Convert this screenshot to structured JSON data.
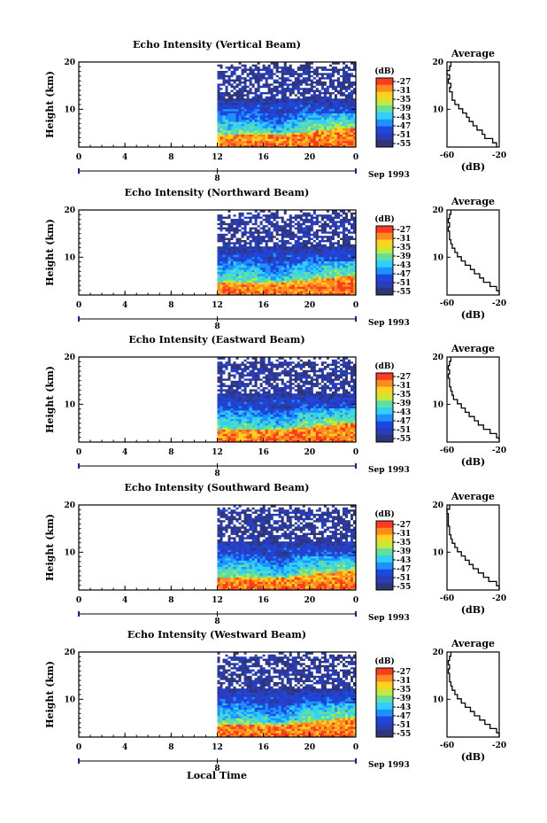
{
  "figure": {
    "xlabel": "Local Time",
    "date_label": "Sep 1993",
    "day_marker": "8"
  },
  "chart_data": [
    {
      "type": "heatmap",
      "title": "Echo Intensity (Vertical Beam)",
      "ylabel": "Height (km)",
      "xlabel": "",
      "xlim": [
        0,
        24
      ],
      "ylim": [
        2,
        20
      ],
      "x_ticks": [
        "0",
        "4",
        "8",
        "12",
        "16",
        "20",
        "0"
      ],
      "y_ticks": [
        "10",
        "20"
      ],
      "data_start_hour": 12,
      "colorbar": {
        "label": "(dB)",
        "ticks": [
          "-27",
          "-31",
          "-35",
          "-39",
          "-43",
          "-47",
          "-51",
          "-55"
        ]
      },
      "profile": {
        "title": "Average",
        "xlabel": "(dB)",
        "xlim": [
          -60,
          -20
        ],
        "x_ticks": [
          "-60",
          "-20"
        ],
        "y_ticks": [
          "10",
          "20"
        ],
        "values": [
          -22,
          -25,
          -31,
          -33,
          -37,
          -40,
          -43,
          -45,
          -48,
          -51,
          -54,
          -56,
          -56,
          -58,
          -57,
          -59,
          -58,
          -60,
          -58,
          -57
        ]
      }
    },
    {
      "type": "heatmap",
      "title": "Echo Intensity (Northward Beam)",
      "ylabel": "Height (km)",
      "xlabel": "",
      "xlim": [
        0,
        24
      ],
      "ylim": [
        2,
        20
      ],
      "x_ticks": [
        "0",
        "4",
        "8",
        "12",
        "16",
        "20",
        "0"
      ],
      "y_ticks": [
        "10",
        "20"
      ],
      "data_start_hour": 12,
      "colorbar": {
        "label": "(dB)",
        "ticks": [
          "-27",
          "-31",
          "-35",
          "-39",
          "-43",
          "-47",
          "-51",
          "-55"
        ]
      },
      "profile": {
        "title": "Average",
        "xlabel": "(dB)",
        "xlim": [
          -60,
          -20
        ],
        "x_ticks": [
          "-60",
          "-20"
        ],
        "y_ticks": [
          "10",
          "20"
        ],
        "values": [
          -20,
          -22,
          -27,
          -32,
          -35,
          -39,
          -42,
          -46,
          -49,
          -52,
          -54,
          -56,
          -57,
          -58,
          -58,
          -59,
          -58,
          -59,
          -58,
          -57
        ]
      }
    },
    {
      "type": "heatmap",
      "title": "Echo Intensity (Eastward Beam)",
      "ylabel": "Height (km)",
      "xlabel": "",
      "xlim": [
        0,
        24
      ],
      "ylim": [
        2,
        20
      ],
      "x_ticks": [
        "0",
        "4",
        "8",
        "12",
        "16",
        "20",
        "0"
      ],
      "y_ticks": [
        "10",
        "20"
      ],
      "data_start_hour": 12,
      "colorbar": {
        "label": "(dB)",
        "ticks": [
          "-27",
          "-31",
          "-35",
          "-39",
          "-43",
          "-47",
          "-51",
          "-55"
        ]
      },
      "profile": {
        "title": "Average",
        "xlabel": "(dB)",
        "xlim": [
          -60,
          -20
        ],
        "x_ticks": [
          "-60",
          "-20"
        ],
        "y_ticks": [
          "10",
          "20"
        ],
        "values": [
          -20,
          -22,
          -27,
          -32,
          -36,
          -39,
          -43,
          -46,
          -49,
          -52,
          -55,
          -56,
          -57,
          -58,
          -58,
          -59,
          -58,
          -59,
          -58,
          -57
        ]
      }
    },
    {
      "type": "heatmap",
      "title": "Echo Intensity (Southward Beam)",
      "ylabel": "Height (km)",
      "xlabel": "",
      "xlim": [
        0,
        24
      ],
      "ylim": [
        2,
        20
      ],
      "x_ticks": [
        "0",
        "4",
        "8",
        "12",
        "16",
        "20",
        "0"
      ],
      "y_ticks": [
        "10",
        "20"
      ],
      "data_start_hour": 12,
      "colorbar": {
        "label": "(dB)",
        "ticks": [
          "-27",
          "-31",
          "-35",
          "-39",
          "-43",
          "-47",
          "-51",
          "-55"
        ]
      },
      "profile": {
        "title": "Average",
        "xlabel": "(dB)",
        "xlim": [
          -60,
          -20
        ],
        "x_ticks": [
          "-60",
          "-20"
        ],
        "y_ticks": [
          "10",
          "20"
        ],
        "values": [
          -20,
          -22,
          -28,
          -32,
          -36,
          -40,
          -43,
          -46,
          -49,
          -52,
          -54,
          -56,
          -57,
          -58,
          -58,
          -59,
          -59,
          -59,
          -60,
          -58
        ]
      }
    },
    {
      "type": "heatmap",
      "title": "Echo Intensity (Westward Beam)",
      "ylabel": "Height (km)",
      "xlabel": "",
      "xlim": [
        0,
        24
      ],
      "ylim": [
        2,
        20
      ],
      "x_ticks": [
        "0",
        "4",
        "8",
        "12",
        "16",
        "20",
        "0"
      ],
      "y_ticks": [
        "10",
        "20"
      ],
      "data_start_hour": 12,
      "colorbar": {
        "label": "(dB)",
        "ticks": [
          "-27",
          "-31",
          "-35",
          "-39",
          "-43",
          "-47",
          "-51",
          "-55"
        ]
      },
      "profile": {
        "title": "Average",
        "xlabel": "(dB)",
        "xlim": [
          -60,
          -20
        ],
        "x_ticks": [
          "-60",
          "-20"
        ],
        "y_ticks": [
          "10",
          "20"
        ],
        "values": [
          -20,
          -22,
          -27,
          -31,
          -35,
          -39,
          -42,
          -46,
          -49,
          -52,
          -54,
          -56,
          -57,
          -58,
          -58,
          -59,
          -58,
          -59,
          -58,
          -57
        ]
      }
    }
  ],
  "colors": {
    "palette": [
      "#ff3b1f",
      "#ff8a1e",
      "#ffd21f",
      "#c6e83a",
      "#5fe0a0",
      "#2fd0ff",
      "#1e90ff",
      "#1c48e0",
      "#2a3cb8",
      "#2e3678"
    ],
    "marker": "#1a1aa0"
  }
}
